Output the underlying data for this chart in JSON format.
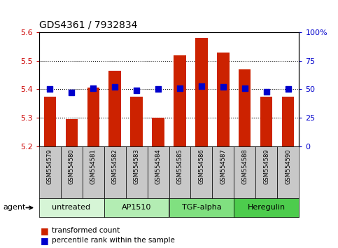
{
  "title": "GDS4361 / 7932834",
  "samples": [
    "GSM554579",
    "GSM554580",
    "GSM554581",
    "GSM554582",
    "GSM554583",
    "GSM554584",
    "GSM554585",
    "GSM554586",
    "GSM554587",
    "GSM554588",
    "GSM554589",
    "GSM554590"
  ],
  "red_values": [
    5.375,
    5.295,
    5.405,
    5.465,
    5.375,
    5.3,
    5.52,
    5.58,
    5.53,
    5.47,
    5.375,
    5.375
  ],
  "blue_values": [
    50,
    47,
    51,
    52,
    49,
    50,
    51,
    53,
    52,
    51,
    48,
    50
  ],
  "ylim_left": [
    5.2,
    5.6
  ],
  "ylim_right": [
    0,
    100
  ],
  "yticks_left": [
    5.2,
    5.3,
    5.4,
    5.5,
    5.6
  ],
  "yticks_right": [
    0,
    25,
    50,
    75,
    100
  ],
  "ytick_right_labels": [
    "0",
    "25",
    "50",
    "75",
    "100%"
  ],
  "groups": [
    {
      "label": "untreated",
      "start": 0,
      "end": 3,
      "color": "#d6f5d6"
    },
    {
      "label": "AP1510",
      "start": 3,
      "end": 6,
      "color": "#b3edb3"
    },
    {
      "label": "TGF-alpha",
      "start": 6,
      "end": 9,
      "color": "#80e080"
    },
    {
      "label": "Heregulin",
      "start": 9,
      "end": 12,
      "color": "#4dcc4d"
    }
  ],
  "bar_color": "#cc2200",
  "dot_color": "#0000cc",
  "bg_xtick": "#c8c8c8",
  "legend_red": "transformed count",
  "legend_blue": "percentile rank within the sample",
  "left_axis_color": "#cc0000",
  "right_axis_color": "#0000cc"
}
